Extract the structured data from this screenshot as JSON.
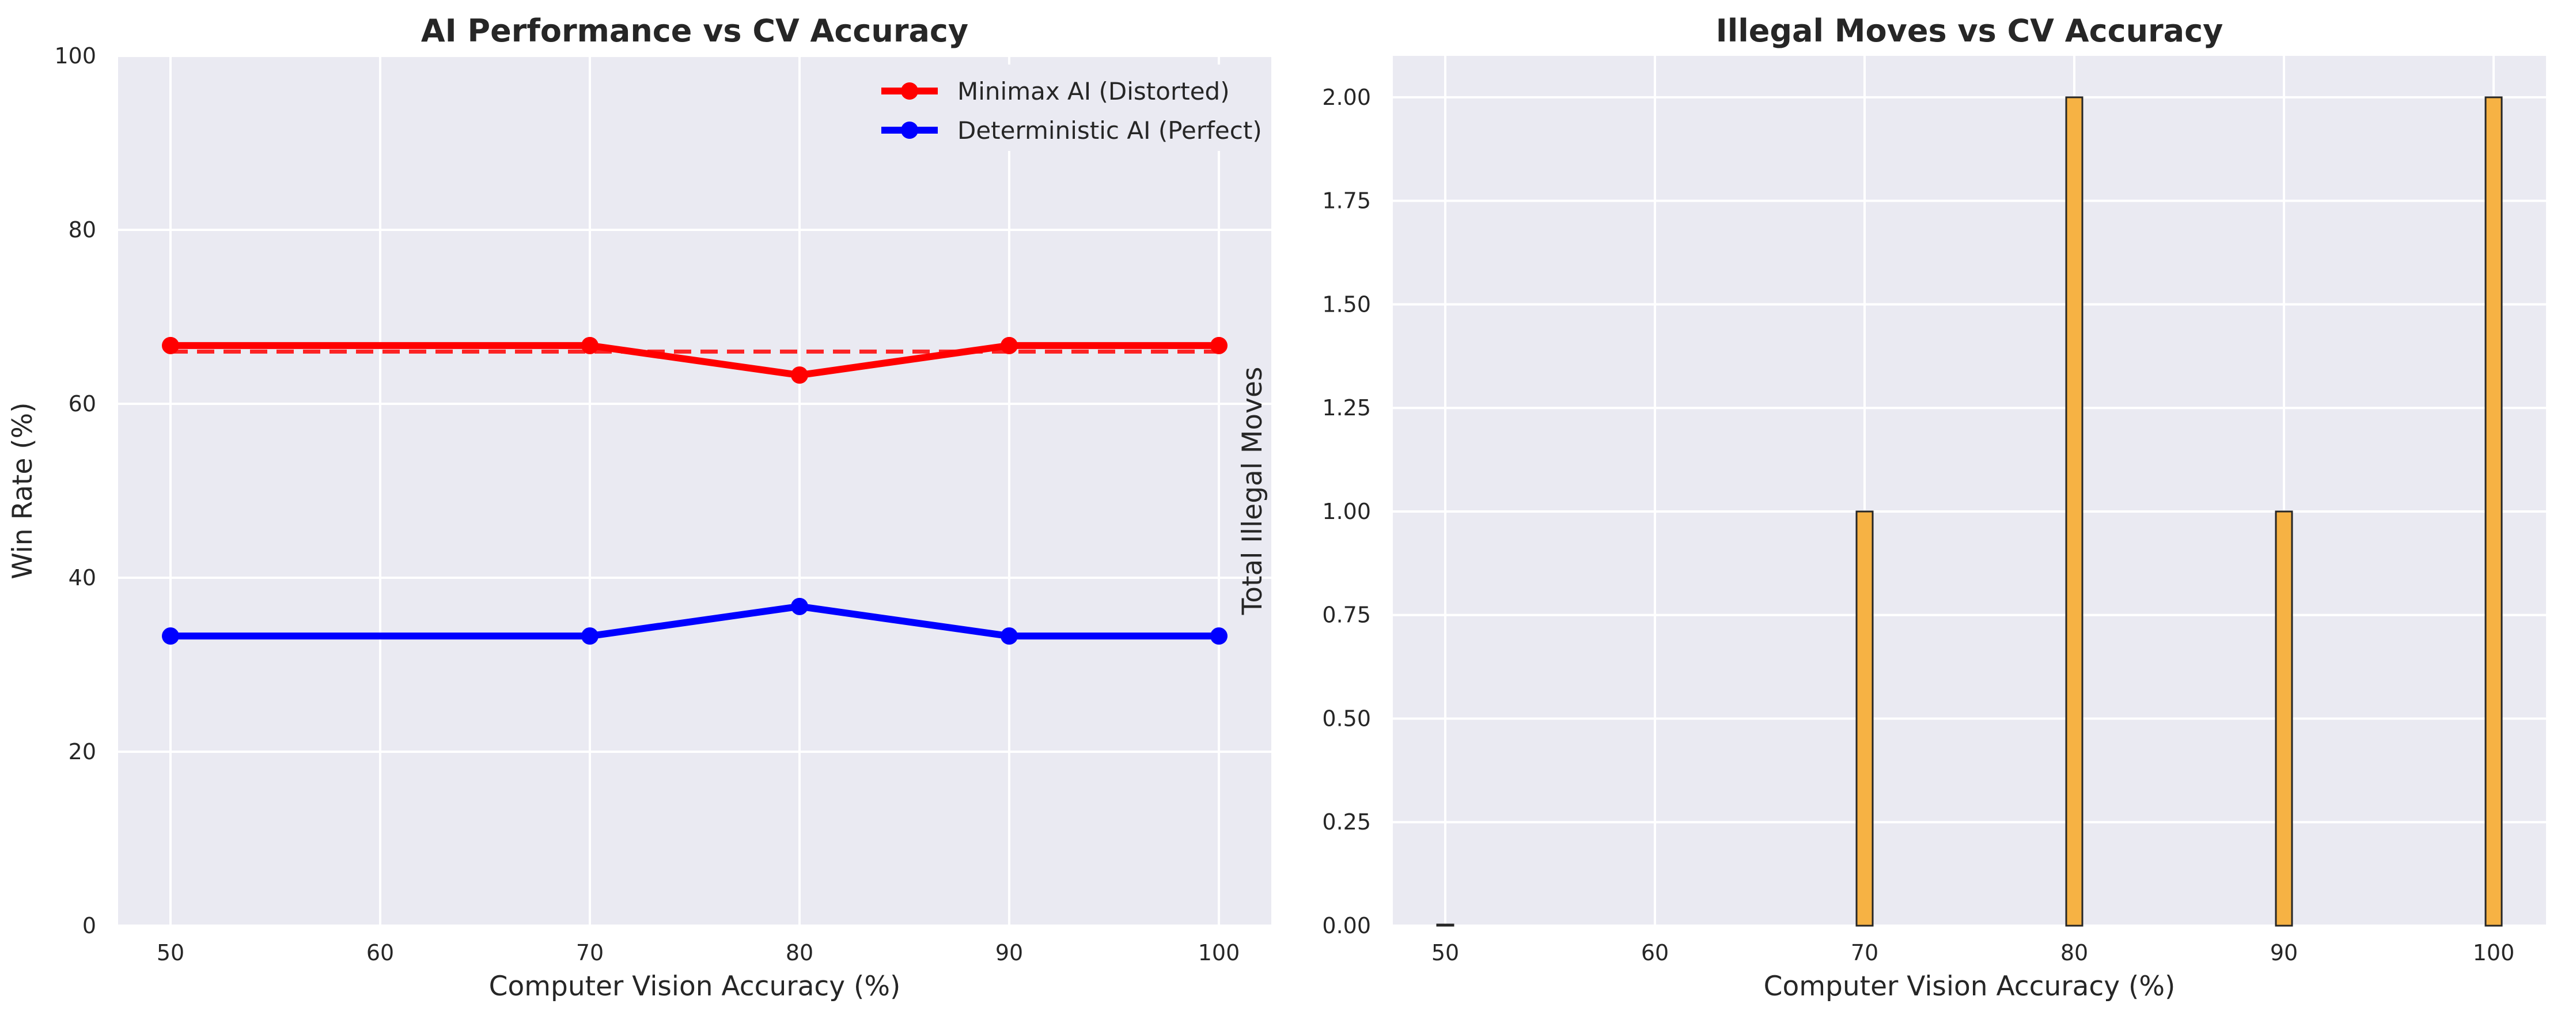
{
  "chart_data": [
    {
      "type": "line",
      "title": "AI Performance vs CV Accuracy",
      "xlabel": "Computer Vision Accuracy (%)",
      "ylabel": "Win Rate (%)",
      "x": [
        50,
        70,
        80,
        90,
        100
      ],
      "xticks": [
        50,
        60,
        70,
        80,
        90,
        100
      ],
      "xlim": [
        47.5,
        102.5
      ],
      "ylim": [
        0,
        100
      ],
      "yticks": [
        0,
        20,
        40,
        60,
        80,
        100
      ],
      "grid": true,
      "legend_position": "top-right",
      "series": [
        {
          "name": "Minimax AI (Distorted)",
          "values": [
            66.7,
            66.7,
            63.3,
            66.7,
            66.7
          ],
          "color": "#ff0000"
        },
        {
          "name": "Deterministic AI (Perfect)",
          "values": [
            33.3,
            33.3,
            36.7,
            33.3,
            33.3
          ],
          "color": "#0000ff"
        }
      ],
      "trend_line": {
        "style": "dashed",
        "color": "#ff0000",
        "values": [
          66.0,
          66.0,
          66.0,
          66.0,
          66.0
        ]
      }
    },
    {
      "type": "bar",
      "title": "Illegal Moves vs CV Accuracy",
      "xlabel": "Computer Vision Accuracy (%)",
      "ylabel": "Total Illegal Moves",
      "x": [
        50,
        70,
        80,
        90,
        100
      ],
      "values": [
        0,
        1,
        2,
        1,
        2
      ],
      "xticks": [
        50,
        60,
        70,
        80,
        90,
        100
      ],
      "xlim": [
        47.5,
        102.5
      ],
      "ylim": [
        0,
        2.1
      ],
      "yticks": [
        "0.00",
        "0.25",
        "0.50",
        "0.75",
        "1.00",
        "1.25",
        "1.50",
        "1.75",
        "2.00"
      ],
      "grid": true,
      "bar_color": "#f6b244",
      "bar_edge_color": "#262626"
    }
  ]
}
